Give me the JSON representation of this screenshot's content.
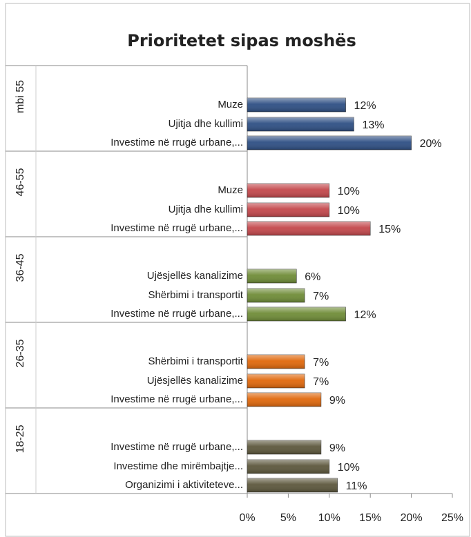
{
  "chart_data": {
    "type": "bar",
    "title": "Prioritetet sipas moshës",
    "xlim": [
      0,
      25
    ],
    "xticks": [
      {
        "value": 0,
        "label": "0%"
      },
      {
        "value": 5,
        "label": "5%"
      },
      {
        "value": 10,
        "label": "10%"
      },
      {
        "value": 15,
        "label": "15%"
      },
      {
        "value": 20,
        "label": "20%"
      },
      {
        "value": 25,
        "label": "25%"
      }
    ],
    "groups": [
      {
        "name": "mbi 55",
        "color": "#2e4f84",
        "categories": [
          "Muze",
          "Ujitja dhe kullimi",
          "Investime në rrugë urbane,..."
        ],
        "values": [
          12,
          13,
          20
        ],
        "value_labels": [
          "12%",
          "13%",
          "20%"
        ]
      },
      {
        "name": "46-55",
        "color": "#c3474b",
        "categories": [
          "Muze",
          "Ujitja dhe kullimi",
          "Investime në rrugë urbane,..."
        ],
        "values": [
          10,
          10,
          15
        ],
        "value_labels": [
          "10%",
          "10%",
          "15%"
        ]
      },
      {
        "name": "36-45",
        "color": "#6f8c37",
        "categories": [
          "Ujësjellës kanalizime",
          "Shërbimi i transportit",
          "Investime në rrugë urbane,..."
        ],
        "values": [
          6,
          7,
          12
        ],
        "value_labels": [
          "6%",
          "7%",
          "12%"
        ]
      },
      {
        "name": "26-35",
        "color": "#e0680c",
        "categories": [
          "Shërbimi i transportit",
          "Ujësjellës kanalizime",
          "Investime në rrugë urbane,..."
        ],
        "values": [
          7,
          7,
          9
        ],
        "value_labels": [
          "7%",
          "7%",
          "9%"
        ]
      },
      {
        "name": "18-25",
        "color": "#5c573c",
        "categories": [
          "Investime në rrugë urbane,...",
          "Investime dhe mirëmbajtje...",
          "Organizimi i aktiviteteve..."
        ],
        "values": [
          9,
          10,
          11
        ],
        "value_labels": [
          "9%",
          "10%",
          "11%"
        ]
      }
    ]
  }
}
